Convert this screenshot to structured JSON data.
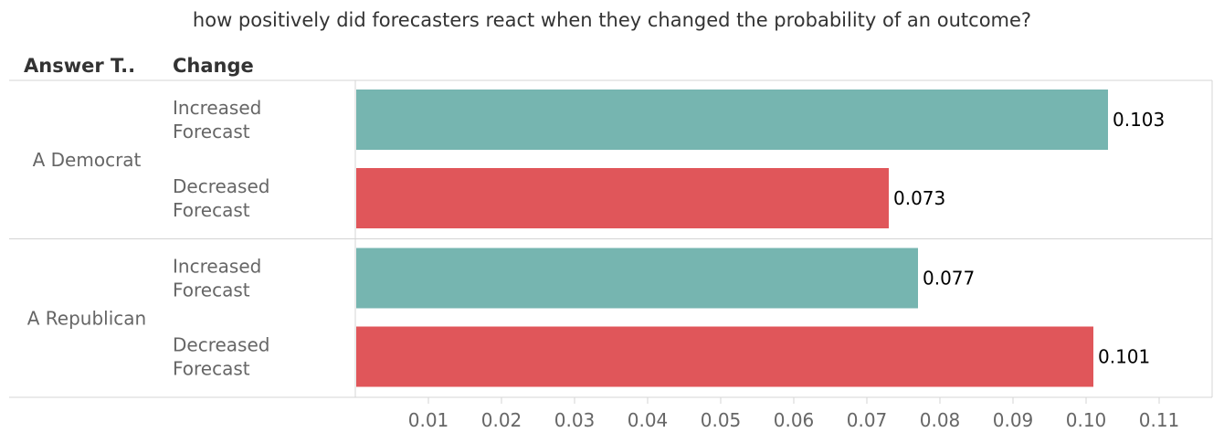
{
  "chart_data": {
    "type": "bar",
    "orientation": "horizontal",
    "title": "how positively did forecasters react when they changed the probability of an outcome?",
    "headers": [
      "Answer T..",
      "Change"
    ],
    "groups": [
      {
        "label": "A Democrat",
        "bars": [
          {
            "label": [
              "Increased",
              "Forecast"
            ],
            "value": 0.103,
            "display": "0.103",
            "color": "#76b5b0"
          },
          {
            "label": [
              "Decreased",
              "Forecast"
            ],
            "value": 0.073,
            "display": "0.073",
            "color": "#e0565a"
          }
        ]
      },
      {
        "label": "A Republican",
        "bars": [
          {
            "label": [
              "Increased",
              "Forecast"
            ],
            "value": 0.077,
            "display": "0.077",
            "color": "#76b5b0"
          },
          {
            "label": [
              "Decreased",
              "Forecast"
            ],
            "value": 0.101,
            "display": "0.101",
            "color": "#e0565a"
          }
        ]
      }
    ],
    "xlim": [
      0,
      0.1175
    ],
    "xticks": [
      {
        "value": 0.01,
        "label": "0.01"
      },
      {
        "value": 0.02,
        "label": "0.02"
      },
      {
        "value": 0.03,
        "label": "0.03"
      },
      {
        "value": 0.04,
        "label": "0.04"
      },
      {
        "value": 0.05,
        "label": "0.05"
      },
      {
        "value": 0.06,
        "label": "0.06"
      },
      {
        "value": 0.07,
        "label": "0.07"
      },
      {
        "value": 0.08,
        "label": "0.08"
      },
      {
        "value": 0.09,
        "label": "0.09"
      },
      {
        "value": 0.1,
        "label": "0.10"
      },
      {
        "value": 0.11,
        "label": "0.11"
      }
    ],
    "grid": false,
    "legend": "none"
  }
}
